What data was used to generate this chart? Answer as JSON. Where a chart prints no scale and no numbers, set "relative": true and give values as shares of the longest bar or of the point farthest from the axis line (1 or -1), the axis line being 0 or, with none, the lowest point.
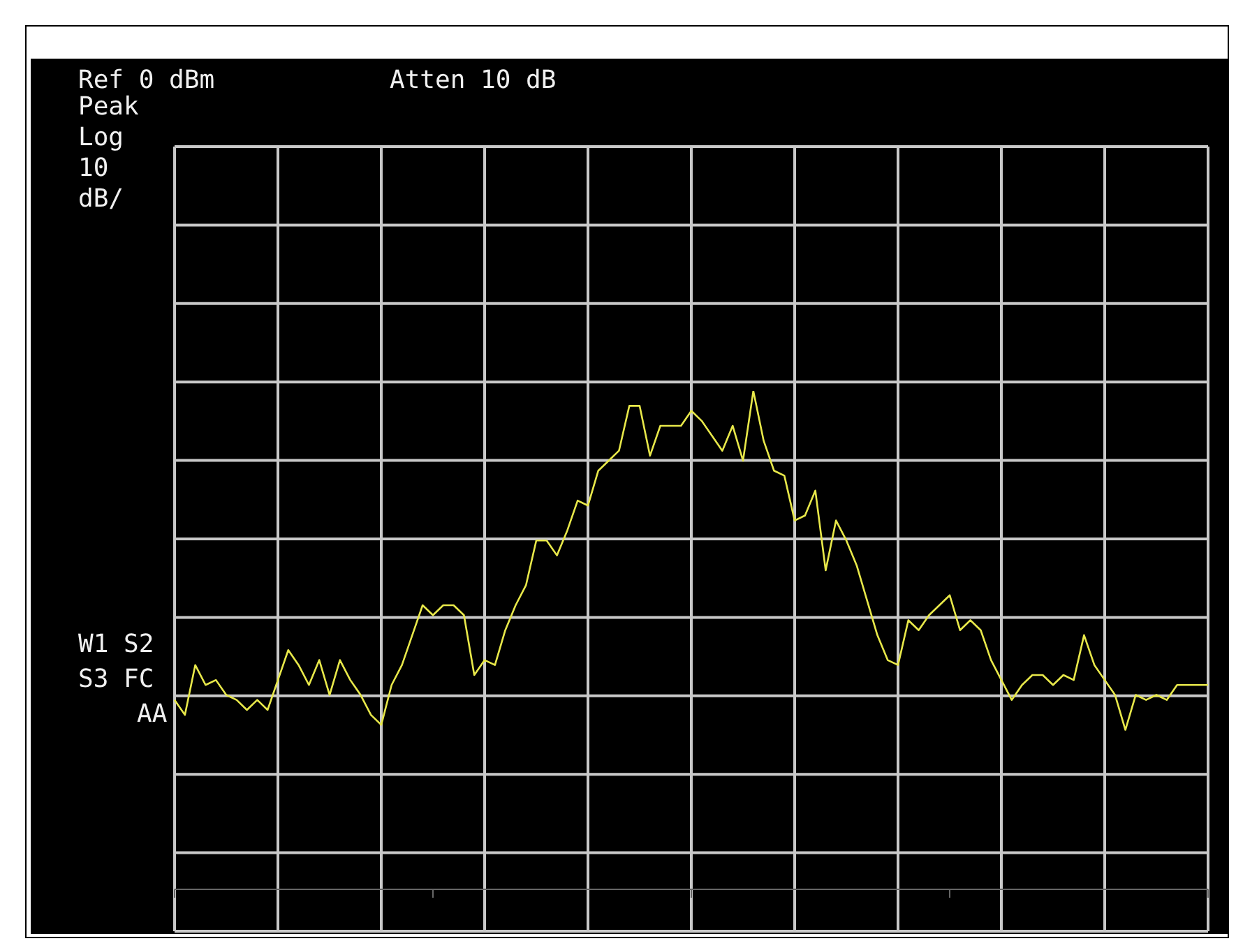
{
  "chart_data": {
    "type": "line",
    "relative": true,
    "grid": true,
    "color": "#e8e84a",
    "annotations": [
      "Ref 0 dBm",
      "Atten 10 dB",
      "Peak",
      "Log",
      "10",
      "dB/",
      "W1 S2",
      "S3 FC",
      "AA"
    ],
    "categories": [
      null,
      null,
      null,
      null,
      null,
      null,
      null,
      null,
      null,
      null,
      null,
      null,
      null,
      null,
      null,
      null,
      null,
      null,
      null,
      null,
      null,
      null,
      null,
      null,
      null,
      null,
      null,
      null,
      null,
      null,
      null,
      null,
      null,
      null,
      null,
      null,
      null,
      null,
      null,
      null,
      null,
      null,
      null,
      null,
      null,
      null,
      null,
      null,
      null,
      null,
      null,
      null,
      null,
      null,
      null,
      null,
      null,
      null,
      null,
      null,
      null,
      null,
      null,
      null,
      null,
      null,
      null,
      null,
      null,
      null,
      null,
      null,
      null,
      null,
      null,
      null,
      null,
      null,
      null,
      null,
      null,
      null,
      null,
      null,
      null,
      null,
      null,
      null,
      null,
      null,
      null,
      null,
      null,
      null,
      null,
      null,
      null,
      null,
      null,
      null,
      null
    ],
    "values": [
      0.38,
      0.35,
      0.45,
      0.41,
      0.42,
      0.39,
      0.38,
      0.36,
      0.38,
      0.36,
      0.42,
      0.48,
      0.45,
      0.41,
      0.46,
      0.39,
      0.46,
      0.42,
      0.39,
      0.35,
      0.33,
      0.41,
      0.45,
      0.51,
      0.57,
      0.55,
      0.57,
      0.57,
      0.55,
      0.43,
      0.46,
      0.45,
      0.52,
      0.57,
      0.61,
      0.7,
      0.7,
      0.67,
      0.72,
      0.78,
      0.77,
      0.84,
      0.86,
      0.88,
      0.97,
      0.97,
      0.87,
      0.93,
      0.93,
      0.93,
      0.96,
      0.94,
      0.91,
      0.88,
      0.93,
      0.86,
      1,
      0.9,
      0.84,
      0.83,
      0.74,
      0.75,
      0.8,
      0.64,
      0.74,
      0.7,
      0.65,
      0.58,
      0.51,
      0.46,
      0.45,
      0.54,
      0.52,
      0.55,
      0.57,
      0.59,
      0.52,
      0.54,
      0.52,
      0.46,
      0.42,
      0.38,
      0.41,
      0.43,
      0.43,
      0.41,
      0.43,
      0.42,
      0.51,
      0.45,
      0.42,
      0.39,
      0.32,
      0.39,
      0.38,
      0.39,
      0.38,
      0.41,
      0.41,
      0.41,
      0.41
    ]
  }
}
